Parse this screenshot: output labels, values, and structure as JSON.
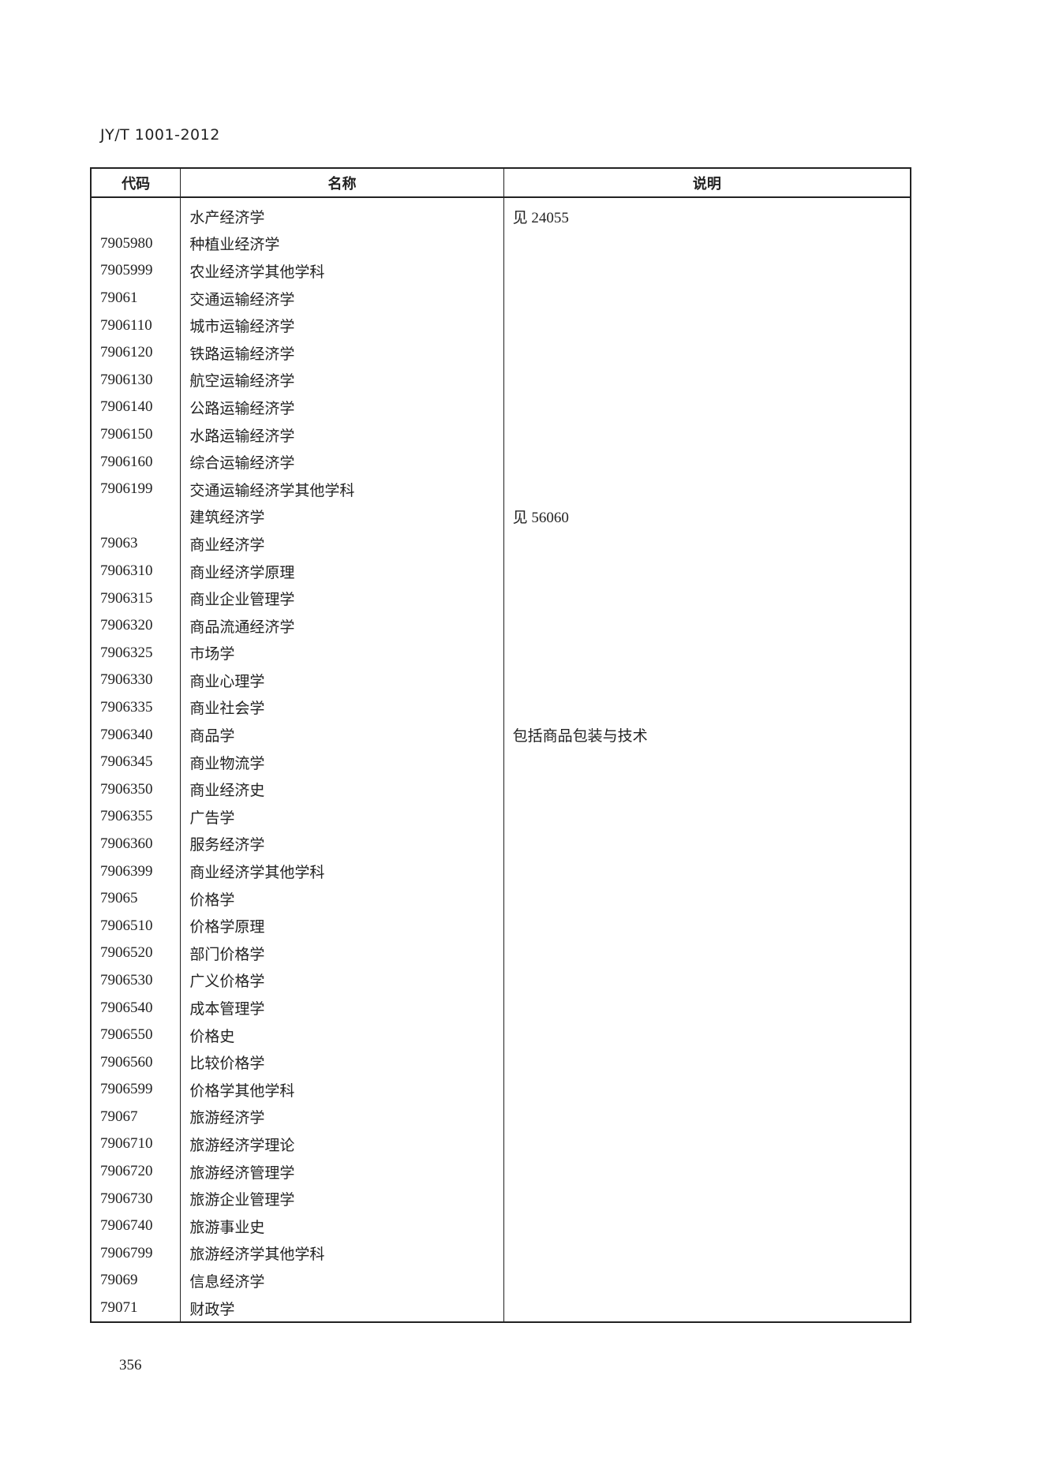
{
  "header": {
    "standard_number": "JY/T 1001-2012"
  },
  "table": {
    "columns": [
      "代码",
      "名称",
      "说明"
    ],
    "rows": [
      [
        "",
        "水产经济学",
        "见 24055"
      ],
      [
        "7905980",
        "种植业经济学",
        ""
      ],
      [
        "7905999",
        "农业经济学其他学科",
        ""
      ],
      [
        "79061",
        "交通运输经济学",
        ""
      ],
      [
        "7906110",
        "城市运输经济学",
        ""
      ],
      [
        "7906120",
        "铁路运输经济学",
        ""
      ],
      [
        "7906130",
        "航空运输经济学",
        ""
      ],
      [
        "7906140",
        "公路运输经济学",
        ""
      ],
      [
        "7906150",
        "水路运输经济学",
        ""
      ],
      [
        "7906160",
        "综合运输经济学",
        ""
      ],
      [
        "7906199",
        "交通运输经济学其他学科",
        ""
      ],
      [
        "",
        "建筑经济学",
        "见 56060"
      ],
      [
        "79063",
        "商业经济学",
        ""
      ],
      [
        "7906310",
        "商业经济学原理",
        ""
      ],
      [
        "7906315",
        "商业企业管理学",
        ""
      ],
      [
        "7906320",
        "商品流通经济学",
        ""
      ],
      [
        "7906325",
        "市场学",
        ""
      ],
      [
        "7906330",
        "商业心理学",
        ""
      ],
      [
        "7906335",
        "商业社会学",
        ""
      ],
      [
        "7906340",
        "商品学",
        "包括商品包装与技术"
      ],
      [
        "7906345",
        "商业物流学",
        ""
      ],
      [
        "7906350",
        "商业经济史",
        ""
      ],
      [
        "7906355",
        "广告学",
        ""
      ],
      [
        "7906360",
        "服务经济学",
        ""
      ],
      [
        "7906399",
        "商业经济学其他学科",
        ""
      ],
      [
        "79065",
        "价格学",
        ""
      ],
      [
        "7906510",
        "价格学原理",
        ""
      ],
      [
        "7906520",
        "部门价格学",
        ""
      ],
      [
        "7906530",
        "广义价格学",
        ""
      ],
      [
        "7906540",
        "成本管理学",
        ""
      ],
      [
        "7906550",
        "价格史",
        ""
      ],
      [
        "7906560",
        "比较价格学",
        ""
      ],
      [
        "7906599",
        "价格学其他学科",
        ""
      ],
      [
        "79067",
        "旅游经济学",
        ""
      ],
      [
        "7906710",
        "旅游经济学理论",
        ""
      ],
      [
        "7906720",
        "旅游经济管理学",
        ""
      ],
      [
        "7906730",
        "旅游企业管理学",
        ""
      ],
      [
        "7906740",
        "旅游事业史",
        ""
      ],
      [
        "7906799",
        "旅游经济学其他学科",
        ""
      ],
      [
        "79069",
        "信息经济学",
        ""
      ],
      [
        "79071",
        "财政学",
        ""
      ]
    ]
  },
  "footer": {
    "page_number": "356"
  }
}
